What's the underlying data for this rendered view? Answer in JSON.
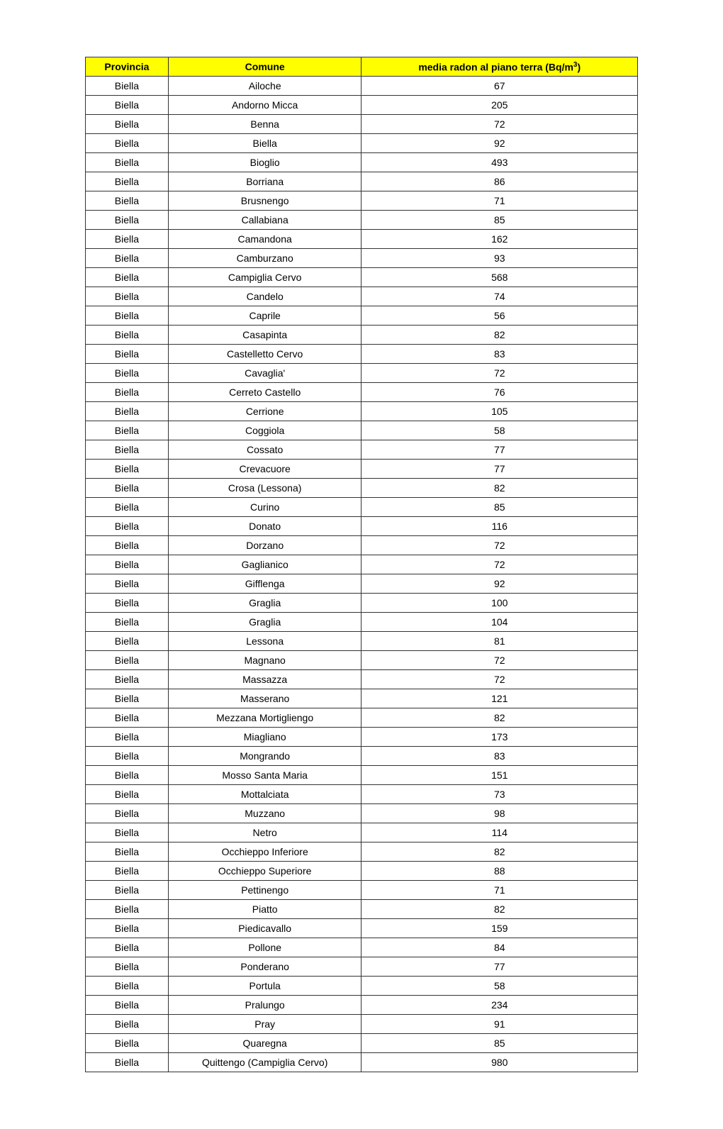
{
  "table": {
    "header_bg": "#ffff00",
    "border_color": "#333333",
    "columns": [
      {
        "label": "Provincia",
        "width_pct": 15
      },
      {
        "label": "Comune",
        "width_pct": 35
      },
      {
        "label_html": "media radon al piano terra (Bq/m³)",
        "label_prefix": "media radon al piano terra (Bq/m",
        "label_sup": "3",
        "label_suffix": ")",
        "width_pct": 50
      }
    ],
    "rows": [
      [
        "Biella",
        "Ailoche",
        "67"
      ],
      [
        "Biella",
        "Andorno Micca",
        "205"
      ],
      [
        "Biella",
        "Benna",
        "72"
      ],
      [
        "Biella",
        "Biella",
        "92"
      ],
      [
        "Biella",
        "Bioglio",
        "493"
      ],
      [
        "Biella",
        "Borriana",
        "86"
      ],
      [
        "Biella",
        "Brusnengo",
        "71"
      ],
      [
        "Biella",
        "Callabiana",
        "85"
      ],
      [
        "Biella",
        "Camandona",
        "162"
      ],
      [
        "Biella",
        "Camburzano",
        "93"
      ],
      [
        "Biella",
        "Campiglia Cervo",
        "568"
      ],
      [
        "Biella",
        "Candelo",
        "74"
      ],
      [
        "Biella",
        "Caprile",
        "56"
      ],
      [
        "Biella",
        "Casapinta",
        "82"
      ],
      [
        "Biella",
        "Castelletto Cervo",
        "83"
      ],
      [
        "Biella",
        "Cavaglia'",
        "72"
      ],
      [
        "Biella",
        "Cerreto Castello",
        "76"
      ],
      [
        "Biella",
        "Cerrione",
        "105"
      ],
      [
        "Biella",
        "Coggiola",
        "58"
      ],
      [
        "Biella",
        "Cossato",
        "77"
      ],
      [
        "Biella",
        "Crevacuore",
        "77"
      ],
      [
        "Biella",
        "Crosa (Lessona)",
        "82"
      ],
      [
        "Biella",
        "Curino",
        "85"
      ],
      [
        "Biella",
        "Donato",
        "116"
      ],
      [
        "Biella",
        "Dorzano",
        "72"
      ],
      [
        "Biella",
        "Gaglianico",
        "72"
      ],
      [
        "Biella",
        "Gifflenga",
        "92"
      ],
      [
        "Biella",
        "Graglia",
        "100"
      ],
      [
        "Biella",
        "Graglia",
        "104"
      ],
      [
        "Biella",
        "Lessona",
        "81"
      ],
      [
        "Biella",
        "Magnano",
        "72"
      ],
      [
        "Biella",
        "Massazza",
        "72"
      ],
      [
        "Biella",
        "Masserano",
        "121"
      ],
      [
        "Biella",
        "Mezzana Mortigliengo",
        "82"
      ],
      [
        "Biella",
        "Miagliano",
        "173"
      ],
      [
        "Biella",
        "Mongrando",
        "83"
      ],
      [
        "Biella",
        "Mosso Santa Maria",
        "151"
      ],
      [
        "Biella",
        "Mottalciata",
        "73"
      ],
      [
        "Biella",
        "Muzzano",
        "98"
      ],
      [
        "Biella",
        "Netro",
        "114"
      ],
      [
        "Biella",
        "Occhieppo Inferiore",
        "82"
      ],
      [
        "Biella",
        "Occhieppo Superiore",
        "88"
      ],
      [
        "Biella",
        "Pettinengo",
        "71"
      ],
      [
        "Biella",
        "Piatto",
        "82"
      ],
      [
        "Biella",
        "Piedicavallo",
        "159"
      ],
      [
        "Biella",
        "Pollone",
        "84"
      ],
      [
        "Biella",
        "Ponderano",
        "77"
      ],
      [
        "Biella",
        "Portula",
        "58"
      ],
      [
        "Biella",
        "Pralungo",
        "234"
      ],
      [
        "Biella",
        "Pray",
        "91"
      ],
      [
        "Biella",
        "Quaregna",
        "85"
      ],
      [
        "Biella",
        "Quittengo (Campiglia Cervo)",
        "980"
      ]
    ]
  }
}
